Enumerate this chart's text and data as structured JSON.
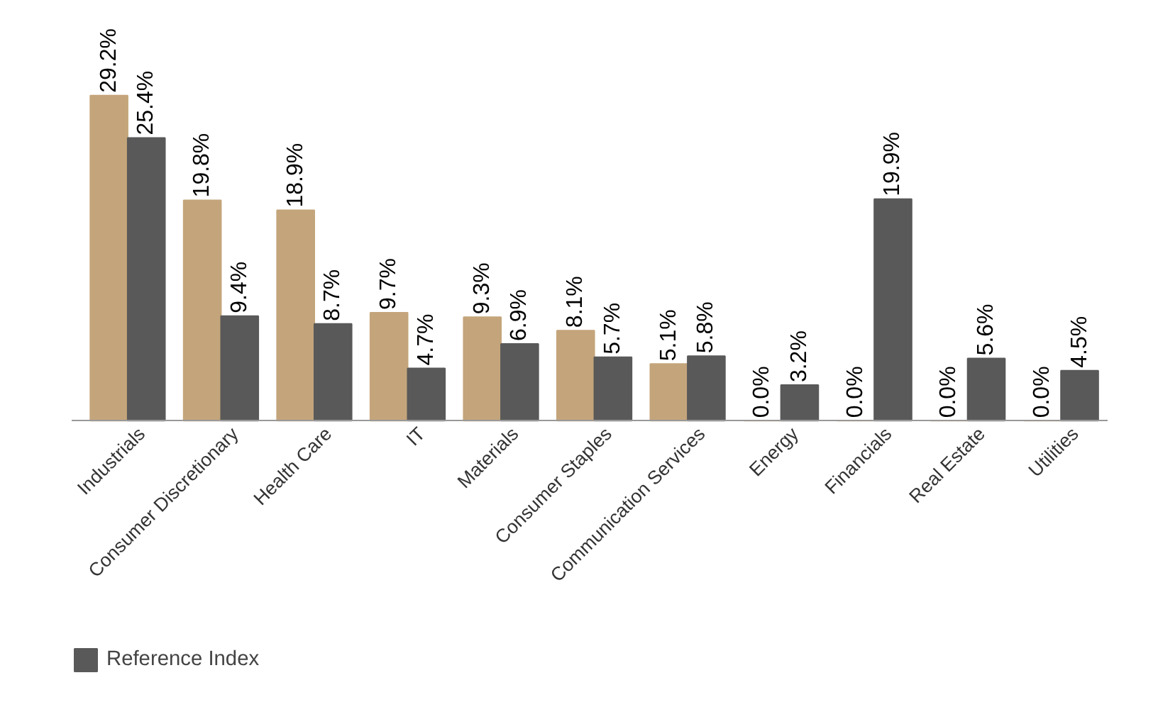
{
  "chart_data": {
    "type": "bar",
    "categories": [
      "Industrials",
      "Consumer Discretionary",
      "Health Care",
      "IT",
      "Materials",
      "Consumer Staples",
      "Communication Services",
      "Energy",
      "Financials",
      "Real Estate",
      "Utilities"
    ],
    "series": [
      {
        "color": "#c4a57b",
        "values": [
          29.2,
          19.8,
          18.9,
          9.7,
          9.3,
          8.1,
          5.1,
          0.0,
          0.0,
          0.0,
          0.0
        ],
        "value_labels": [
          "29.2%",
          "19.8%",
          "18.9%",
          "9.7%",
          "9.3%",
          "8.1%",
          "5.1%",
          "0.0%",
          "0.0%",
          "0.0%",
          "0.0%"
        ]
      },
      {
        "name": "Reference Index",
        "color": "#595959",
        "values": [
          25.4,
          9.4,
          8.7,
          4.7,
          6.9,
          5.7,
          5.8,
          3.2,
          19.9,
          5.6,
          4.5
        ],
        "value_labels": [
          "25.4%",
          "9.4%",
          "8.7%",
          "4.7%",
          "6.9%",
          "5.7%",
          "5.8%",
          "3.2%",
          "19.9%",
          "5.6%",
          "4.5%"
        ]
      }
    ],
    "legend": "bottom"
  }
}
